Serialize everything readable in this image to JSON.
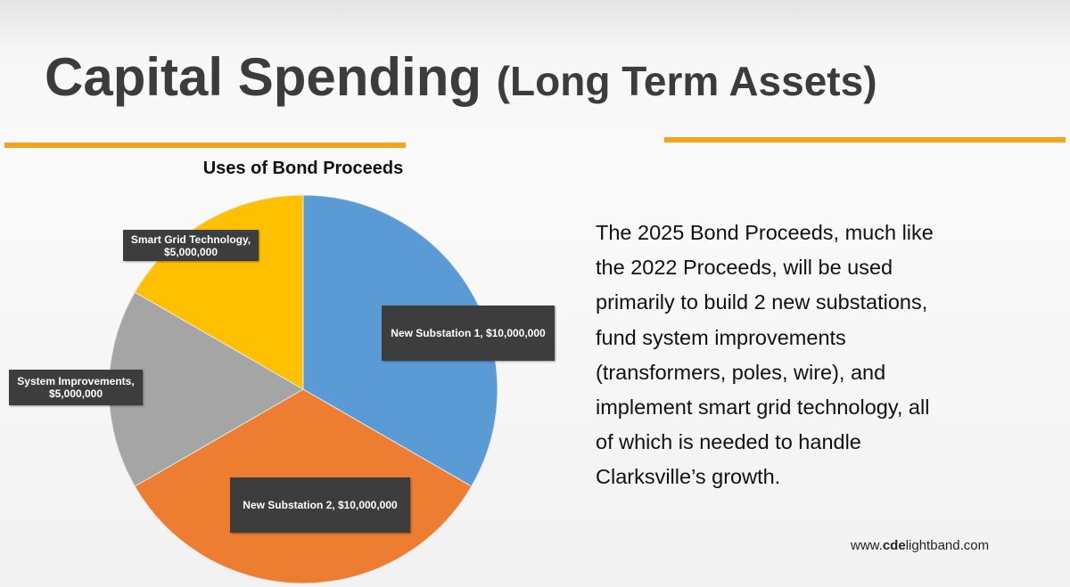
{
  "header": {
    "title": "Capital Spending",
    "subtitle": "(Long Term Assets)"
  },
  "chart_data": {
    "type": "pie",
    "title": "Uses of Bond Proceeds",
    "values": [
      10000000,
      10000000,
      5000000,
      5000000
    ],
    "value_labels": [
      "New Substation 1,  $10,000,000",
      "New Substation 2,  $10,000,000",
      "System Improvements, $5,000,000",
      "Smart Grid Technology, $5,000,000"
    ],
    "colors": [
      "#5b9bd5",
      "#ed7d31",
      "#a5a5a5",
      "#ffc000"
    ]
  },
  "body": {
    "lines": [
      "The 2025 Bond Proceeds, much like",
      "the 2022 Proceeds, will be used",
      "primarily to build 2 new substations,",
      "fund system improvements",
      "(transformers, poles, wire), and",
      "implement smart grid technology, all",
      "of which is needed to handle",
      "Clarksville’s growth."
    ]
  },
  "footer": {
    "url_parts": [
      "www.",
      "cde",
      "lightband.com"
    ]
  }
}
